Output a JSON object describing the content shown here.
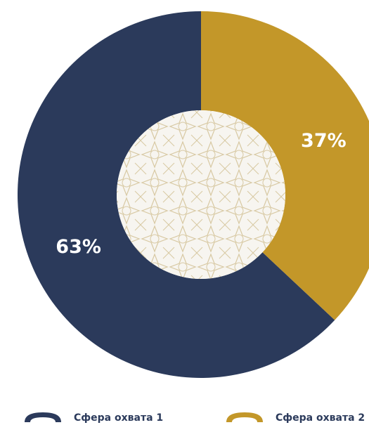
{
  "chart_data": {
    "type": "donut",
    "categories": [
      "Сфера охвата 1",
      "Сфера охвата 2"
    ],
    "values": [
      63,
      37
    ],
    "value_labels": [
      "63%",
      "37%"
    ],
    "colors": [
      "#2b3a5b",
      "#c39729"
    ]
  }
}
